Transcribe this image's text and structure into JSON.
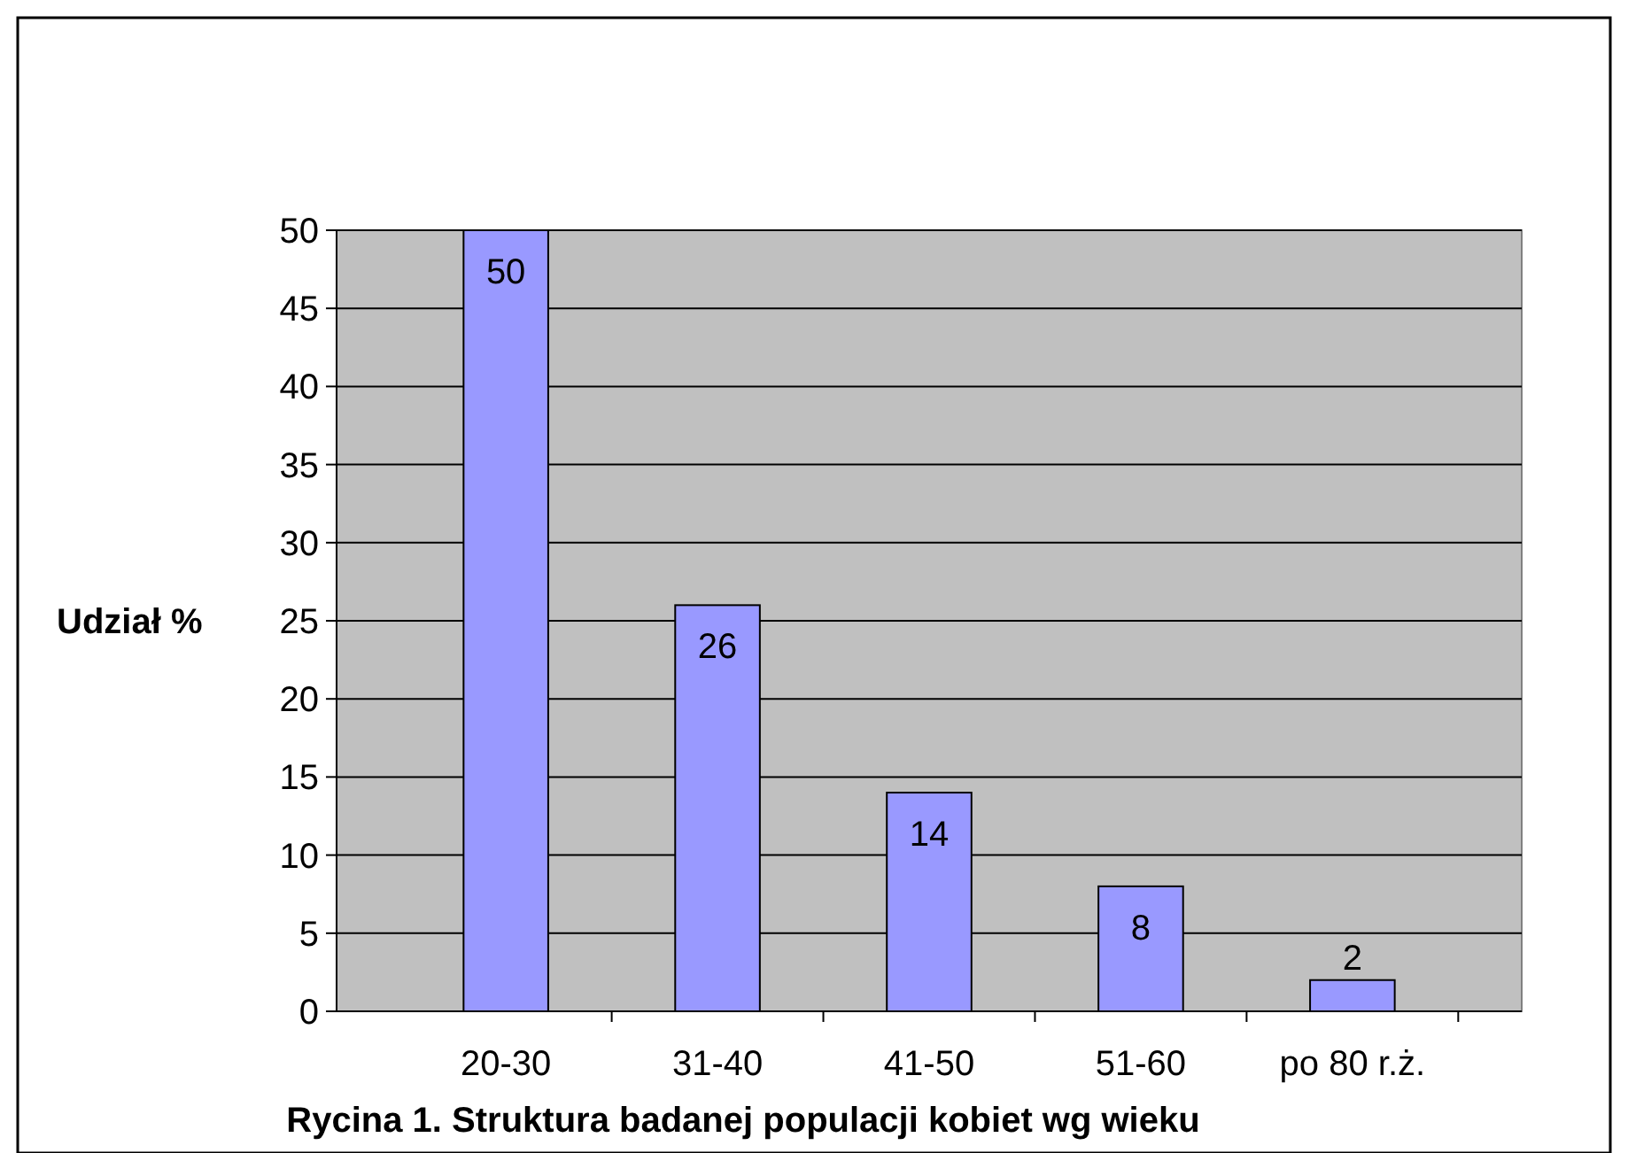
{
  "chart_data": {
    "type": "bar",
    "title": "Rycina 1. Struktura badanej populacji kobiet wg wieku",
    "ylabel": "Udział %",
    "categories": [
      "20-30",
      "31-40",
      "41-50",
      "51-60",
      "po 80 r.ż."
    ],
    "values": [
      50,
      26,
      14,
      8,
      2
    ],
    "color": "#9999ff",
    "ylim": [
      0,
      50
    ],
    "yticks": [
      0,
      5,
      10,
      15,
      20,
      25,
      30,
      35,
      40,
      45,
      50
    ],
    "grid": "y",
    "data_labels": true
  }
}
